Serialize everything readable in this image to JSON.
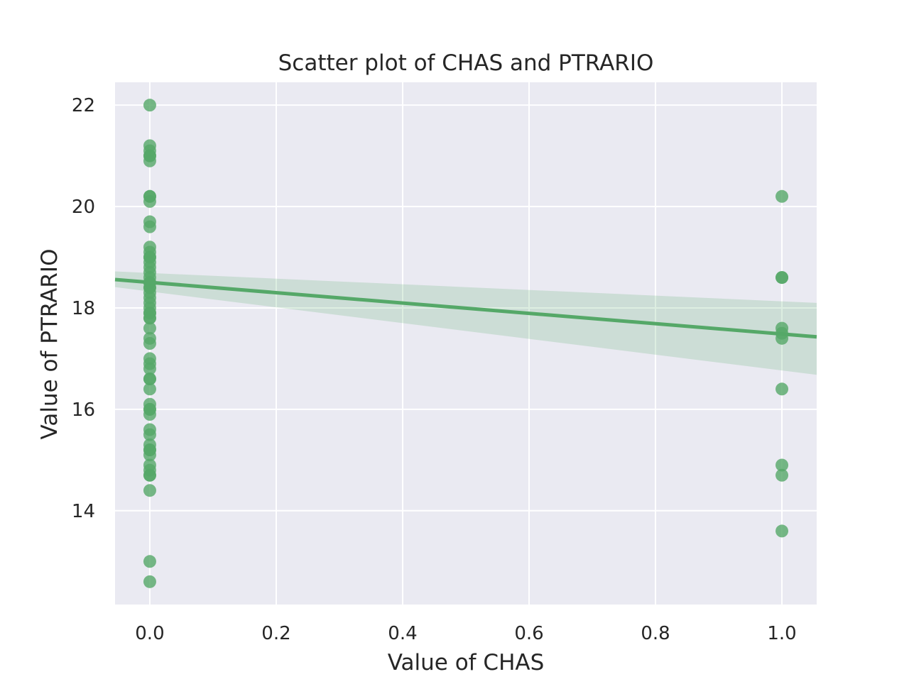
{
  "colors": {
    "plot_background": "#eaeaf2",
    "grid": "#ffffff",
    "point": "#55a868",
    "regression_line": "#55a868",
    "confidence_band": "#55a868",
    "text": "#262626"
  },
  "chart_data": {
    "type": "scatter",
    "title": "Scatter plot of CHAS and PTRARIO",
    "xlabel": "Value of CHAS",
    "ylabel": "Value of PTRARIO",
    "xlim": [
      -0.055,
      1.055
    ],
    "ylim": [
      12.15,
      22.45
    ],
    "xticks": [
      0.0,
      0.2,
      0.4,
      0.6,
      0.8,
      1.0
    ],
    "xtick_labels": [
      "0.0",
      "0.2",
      "0.4",
      "0.6",
      "0.8",
      "1.0"
    ],
    "yticks": [
      14,
      16,
      18,
      20,
      22
    ],
    "ytick_labels": [
      "14",
      "16",
      "18",
      "20",
      "22"
    ],
    "grid": true,
    "legend": "none",
    "series": [
      {
        "x": [
          0,
          0,
          0,
          0,
          0,
          0,
          0,
          0,
          0,
          0,
          0,
          0,
          0,
          0,
          0,
          0,
          0,
          0,
          0,
          0,
          0,
          0,
          0,
          0,
          0,
          0,
          0,
          0,
          0,
          0,
          0,
          0,
          0,
          0,
          0,
          0,
          0,
          0,
          0,
          0,
          0,
          0,
          0,
          0,
          0,
          0,
          0,
          0,
          0,
          0,
          0,
          0,
          0,
          0,
          0,
          0,
          0,
          1,
          1,
          1,
          1,
          1,
          1,
          1,
          1,
          1,
          1
        ],
        "y": [
          22.0,
          21.2,
          21.1,
          21.0,
          20.9,
          20.2,
          20.1,
          19.7,
          19.6,
          19.2,
          19.1,
          19.0,
          18.9,
          18.8,
          18.7,
          18.6,
          18.5,
          18.4,
          18.3,
          18.2,
          18.0,
          17.9,
          17.8,
          17.6,
          17.4,
          17.3,
          17.0,
          16.9,
          16.8,
          16.6,
          16.4,
          16.1,
          16.0,
          15.9,
          15.6,
          15.5,
          15.3,
          15.2,
          15.1,
          14.9,
          14.8,
          14.7,
          14.4,
          13.0,
          12.6,
          18.1,
          17.9,
          19.0,
          18.4,
          20.2,
          16.6,
          17.8,
          21.0,
          14.7,
          15.2,
          16.0,
          18.5,
          20.2,
          18.6,
          17.6,
          17.5,
          17.4,
          16.4,
          14.9,
          14.7,
          13.6,
          18.6
        ]
      }
    ],
    "regression": {
      "x": [
        -0.055,
        1.055
      ],
      "y": [
        18.56,
        17.43
      ],
      "ci_lower": [
        18.41,
        16.68
      ],
      "ci_upper": [
        18.72,
        18.1
      ]
    }
  }
}
